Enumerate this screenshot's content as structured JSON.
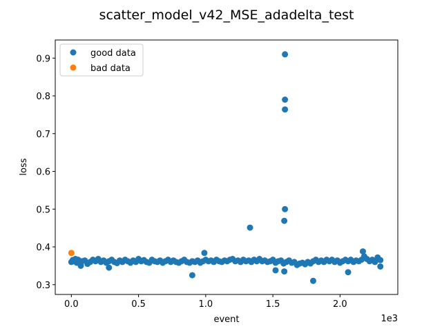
{
  "chart_data": {
    "type": "scatter",
    "title": "scatter_model_v42_MSE_adadelta_test",
    "xlabel": "event",
    "ylabel": "loss",
    "x_offset_label": "1e3",
    "xlim": [
      -0.12,
      2.43
    ],
    "ylim": [
      0.274,
      0.948
    ],
    "x_ticks": [
      0.0,
      0.5,
      1.0,
      1.5,
      2.0
    ],
    "x_tick_labels": [
      "0.0",
      "0.5",
      "1.0",
      "1.5",
      "2.0"
    ],
    "y_ticks": [
      0.3,
      0.4,
      0.5,
      0.6,
      0.7,
      0.8,
      0.9
    ],
    "y_tick_labels": [
      "0.3",
      "0.4",
      "0.5",
      "0.6",
      "0.7",
      "0.8",
      "0.9"
    ],
    "grid": false,
    "legend_position": "top-left",
    "series": [
      {
        "name": "good data",
        "color": "#1f77b4",
        "x": [
          0.0,
          0.01,
          0.02,
          0.03,
          0.04,
          0.05,
          0.06,
          0.07,
          0.08,
          0.1,
          0.12,
          0.14,
          0.16,
          0.18,
          0.2,
          0.22,
          0.24,
          0.26,
          0.28,
          0.3,
          0.32,
          0.34,
          0.36,
          0.38,
          0.4,
          0.42,
          0.44,
          0.46,
          0.48,
          0.5,
          0.52,
          0.54,
          0.56,
          0.58,
          0.6,
          0.62,
          0.64,
          0.66,
          0.68,
          0.7,
          0.72,
          0.74,
          0.76,
          0.78,
          0.8,
          0.82,
          0.84,
          0.86,
          0.88,
          0.9,
          0.92,
          0.94,
          0.96,
          0.98,
          1.0,
          1.02,
          1.04,
          1.06,
          1.08,
          1.1,
          1.12,
          1.14,
          1.16,
          1.18,
          1.2,
          1.22,
          1.24,
          1.26,
          1.28,
          1.3,
          1.32,
          1.34,
          1.36,
          1.38,
          1.4,
          1.42,
          1.44,
          1.46,
          1.48,
          1.5,
          1.52,
          1.54,
          1.56,
          1.58,
          1.6,
          1.62,
          1.64,
          1.66,
          1.68,
          1.7,
          1.72,
          1.74,
          1.76,
          1.78,
          1.8,
          1.82,
          1.84,
          1.86,
          1.88,
          1.9,
          1.92,
          1.94,
          1.96,
          1.98,
          2.0,
          2.02,
          2.04,
          2.06,
          2.08,
          2.1,
          2.12,
          2.14,
          2.16,
          2.18,
          2.2,
          2.22,
          2.24,
          2.26,
          2.28,
          2.3,
          0.9,
          0.99,
          1.33,
          1.52,
          1.585,
          1.585,
          1.59,
          1.59,
          1.59,
          1.59,
          1.8,
          2.06,
          2.17,
          0.28,
          0.07,
          2.3
        ],
        "y": [
          0.36,
          0.365,
          0.362,
          0.368,
          0.358,
          0.366,
          0.36,
          0.352,
          0.362,
          0.364,
          0.355,
          0.36,
          0.366,
          0.362,
          0.368,
          0.36,
          0.364,
          0.358,
          0.362,
          0.366,
          0.36,
          0.357,
          0.364,
          0.36,
          0.366,
          0.362,
          0.358,
          0.364,
          0.36,
          0.368,
          0.362,
          0.365,
          0.36,
          0.358,
          0.366,
          0.362,
          0.36,
          0.364,
          0.358,
          0.362,
          0.366,
          0.36,
          0.364,
          0.36,
          0.358,
          0.362,
          0.366,
          0.36,
          0.358,
          0.362,
          0.36,
          0.364,
          0.358,
          0.362,
          0.366,
          0.362,
          0.364,
          0.36,
          0.366,
          0.362,
          0.36,
          0.364,
          0.362,
          0.366,
          0.368,
          0.362,
          0.364,
          0.36,
          0.366,
          0.362,
          0.364,
          0.36,
          0.366,
          0.362,
          0.368,
          0.362,
          0.364,
          0.36,
          0.362,
          0.366,
          0.358,
          0.362,
          0.364,
          0.356,
          0.36,
          0.364,
          0.358,
          0.36,
          0.352,
          0.356,
          0.358,
          0.354,
          0.36,
          0.356,
          0.362,
          0.366,
          0.36,
          0.364,
          0.36,
          0.366,
          0.362,
          0.366,
          0.36,
          0.364,
          0.358,
          0.362,
          0.366,
          0.362,
          0.366,
          0.36,
          0.364,
          0.362,
          0.366,
          0.375,
          0.368,
          0.362,
          0.366,
          0.36,
          0.372,
          0.365,
          0.325,
          0.384,
          0.451,
          0.338,
          0.335,
          0.469,
          0.5,
          0.764,
          0.79,
          0.91,
          0.31,
          0.333,
          0.388,
          0.345,
          0.35,
          0.348
        ]
      },
      {
        "name": "bad data",
        "color": "#ff7f0e",
        "x": [
          0.0
        ],
        "y": [
          0.384
        ]
      }
    ]
  }
}
